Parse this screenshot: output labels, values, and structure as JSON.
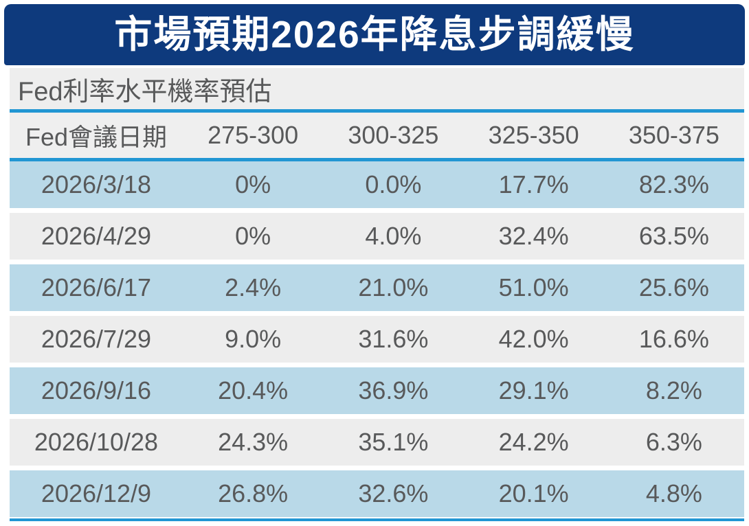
{
  "title": "市場預期2026年降息步調緩慢",
  "subtitle": "Fed利率水平機率預估",
  "colors": {
    "banner_bg": "#0e3a7d",
    "banner_text": "#ffffff",
    "subtitle_bg": "#eeeeee",
    "header_bg": "#efefef",
    "row_blue": "#b9d9e8",
    "row_gray": "#ededed",
    "divider": "#2196d3",
    "text": "#58595a"
  },
  "chart_data": {
    "type": "table",
    "title": "市場預期2026年降息步調緩慢",
    "subtitle": "Fed利率水平機率預估",
    "columns": [
      "Fed會議日期",
      "275-300",
      "300-325",
      "325-350",
      "350-375"
    ],
    "rows": [
      [
        "2026/3/18",
        "0%",
        "0.0%",
        "17.7%",
        "82.3%"
      ],
      [
        "2026/4/29",
        "0%",
        "4.0%",
        "32.4%",
        "63.5%"
      ],
      [
        "2026/6/17",
        "2.4%",
        "21.0%",
        "51.0%",
        "25.6%"
      ],
      [
        "2026/7/29",
        "9.0%",
        "31.6%",
        "42.0%",
        "16.6%"
      ],
      [
        "2026/9/16",
        "20.4%",
        "36.9%",
        "29.1%",
        "8.2%"
      ],
      [
        "2026/10/28",
        "24.3%",
        "35.1%",
        "24.2%",
        "6.3%"
      ],
      [
        "2026/12/9",
        "26.8%",
        "32.6%",
        "20.1%",
        "4.8%"
      ]
    ]
  }
}
